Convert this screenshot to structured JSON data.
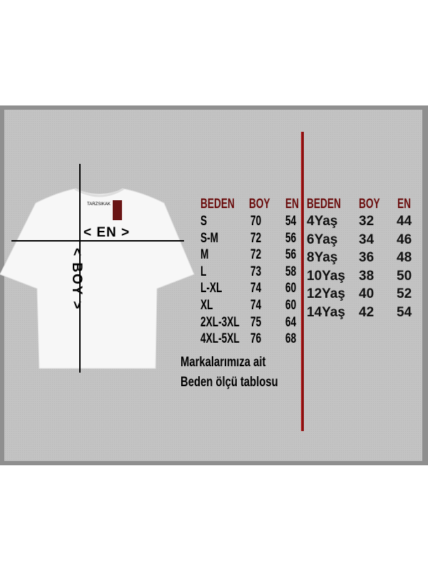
{
  "shirt": {
    "brand_tag": "TARZSIKAK",
    "en_label": "< EN >",
    "boy_label": "< BOY >"
  },
  "adult": {
    "headers": [
      "BEDEN",
      "BOY",
      "EN"
    ],
    "rows": [
      [
        "S",
        "70",
        "54"
      ],
      [
        "S-M",
        "72",
        "56"
      ],
      [
        "M",
        "72",
        "56"
      ],
      [
        "L",
        "73",
        "58"
      ],
      [
        "L-XL",
        "74",
        "60"
      ],
      [
        "XL",
        "74",
        "60"
      ],
      [
        "2XL-3XL",
        "75",
        "64"
      ],
      [
        "4XL-5XL",
        "76",
        "68"
      ]
    ]
  },
  "kids": {
    "headers": [
      "BEDEN",
      "BOY",
      "EN"
    ],
    "rows": [
      [
        "4Yaş",
        "32",
        "44"
      ],
      [
        "6Yaş",
        "34",
        "46"
      ],
      [
        "8Yaş",
        "36",
        "48"
      ],
      [
        "10Yaş",
        "38",
        "50"
      ],
      [
        "12Yaş",
        "40",
        "52"
      ],
      [
        "14Yaş",
        "42",
        "54"
      ]
    ]
  },
  "footer": [
    "Markalarımıza ait",
    "Beden ölçü tablosu"
  ],
  "colors": {
    "header": "#6a0c0c",
    "divider": "#8b1010",
    "panel": "#c3c3c3"
  }
}
